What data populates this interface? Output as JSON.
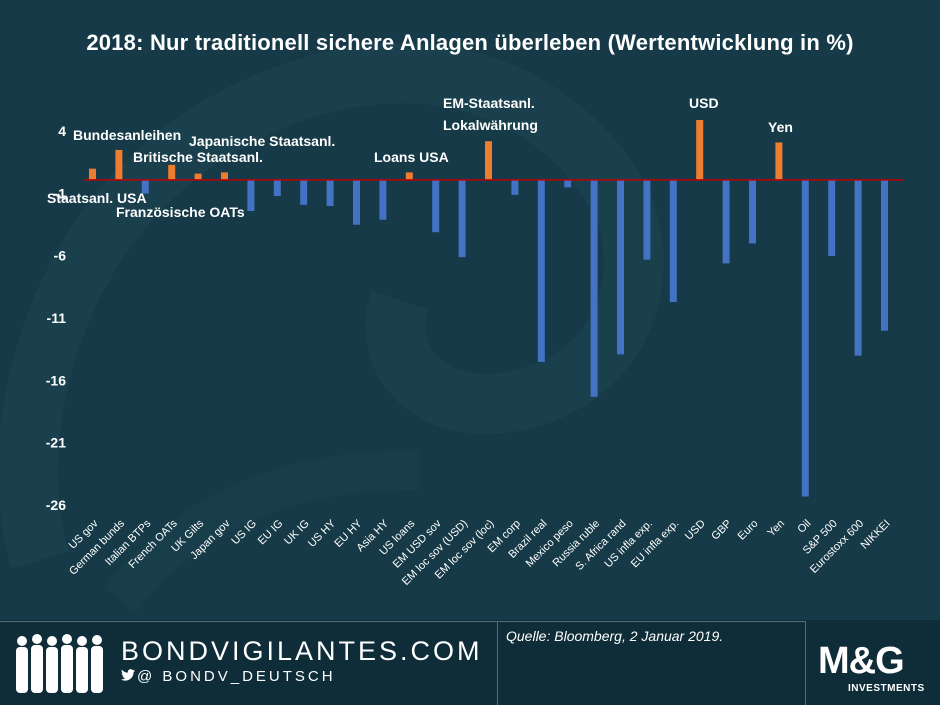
{
  "title": "2018: Nur traditionell sichere Anlagen überleben (Wertentwicklung in %)",
  "colors": {
    "background": "#163a47",
    "positive_bar": "#ed7d31",
    "negative_bar": "#4472c4",
    "zero_line": "#c00000",
    "text": "#ffffff"
  },
  "chart_data": {
    "type": "bar",
    "title": "2018: Nur traditionell sichere Anlagen überleben (Wertentwicklung in %)",
    "xlabel": "",
    "ylabel": "",
    "ylim": [
      -26,
      4
    ],
    "yticks": [
      4,
      -1,
      -6,
      -11,
      -16,
      -21,
      -26
    ],
    "categories": [
      "US gov",
      "German bunds",
      "Italian BTPs",
      "French OATs",
      "UK Gilts",
      "Japan gov",
      "US IG",
      "EU IG",
      "UK IG",
      "US HY",
      "EU HY",
      "Asia HY",
      "US loans",
      "EM USD sov",
      "EM loc sov (USD)",
      "EM loc sov (loc)",
      "EM corp",
      "Brazil real",
      "Mexico peso",
      "Russia ruble",
      "S. Africa rand",
      "US infla exp.",
      "EU infla exp.",
      "USD",
      "GBP",
      "Euro",
      "Yen",
      "Oil",
      "S&P 500",
      "Eurostoxx 600",
      "NIKKEI"
    ],
    "values": [
      0.9,
      2.4,
      -1.1,
      1.2,
      0.5,
      0.6,
      -2.5,
      -1.3,
      -2.0,
      -2.1,
      -3.6,
      -3.2,
      0.6,
      -4.2,
      -6.2,
      3.1,
      -1.2,
      -14.6,
      -0.6,
      -17.4,
      -14.0,
      -6.4,
      -9.8,
      4.8,
      -6.7,
      -5.1,
      3.0,
      -25.4,
      -6.1,
      -14.1,
      -12.1
    ],
    "annotations": [
      {
        "text": "Bundesanleihen",
        "category": "German bunds"
      },
      {
        "text": "Britische Staatsanl.",
        "category": "French OATs"
      },
      {
        "text": "Japanische Staatsanl.",
        "category": "Japan gov"
      },
      {
        "text": "Staatsanl. USA",
        "category": "US gov"
      },
      {
        "text": "Französische OATs",
        "category": "Italian BTPs"
      },
      {
        "text": "Loans USA",
        "category": "US loans"
      },
      {
        "text": "EM-Staatsanl.",
        "category": "EM loc sov (loc)"
      },
      {
        "text": "Lokalwährung",
        "category": "EM loc sov (loc)"
      },
      {
        "text": "USD",
        "category": "USD"
      },
      {
        "text": "Yen",
        "category": "Yen"
      }
    ]
  },
  "footer": {
    "site": "BONDVIGILANTES.COM",
    "twitter_icon": "twitter-bird-icon",
    "handle": "@ BONDV_DEUTSCH",
    "source": "Quelle: Bloomberg, 2 Januar 2019.",
    "logo_main": "M&G",
    "logo_sub": "INVESTMENTS"
  }
}
